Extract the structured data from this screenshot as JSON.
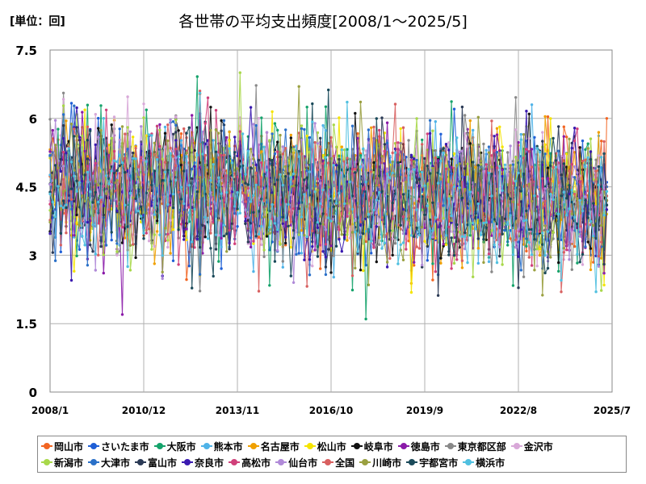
{
  "chart_data": {
    "type": "line",
    "title": "各世帯の平均支出頻度[2008/1～2025/5]",
    "unit_label": "[単位：回]",
    "ylim": [
      0,
      7.5
    ],
    "yticks": [
      "0",
      "1.5",
      "3",
      "4.5",
      "6",
      "7.5"
    ],
    "xlim": [
      "2008/1",
      "2025/7"
    ],
    "xticks": [
      "2008/1",
      "2010/12",
      "2013/11",
      "2016/10",
      "2019/9",
      "2022/8",
      "2025/7"
    ],
    "grid": true,
    "legend_position": "bottom",
    "series": [
      {
        "name": "岡山市",
        "color": "#f26522",
        "last": 6.0
      },
      {
        "name": "さいたま市",
        "color": "#1f5fd6",
        "last": 4.6
      },
      {
        "name": "大阪市",
        "color": "#15a36b",
        "last": 4.3
      },
      {
        "name": "熊本市",
        "color": "#4fb3e8",
        "last": 4.4
      },
      {
        "name": "名古屋市",
        "color": "#f0a000",
        "last": 4.2
      },
      {
        "name": "松山市",
        "color": "#f5e400",
        "last": 3.9
      },
      {
        "name": "岐阜市",
        "color": "#111111",
        "last": 4.1
      },
      {
        "name": "徳島市",
        "color": "#8a1aa8",
        "last": 4.0
      },
      {
        "name": "東京都区部",
        "color": "#888888",
        "last": 4.3
      },
      {
        "name": "金沢市",
        "color": "#d8a8d8",
        "last": 4.1
      },
      {
        "name": "新潟市",
        "color": "#a8d84a",
        "last": 4.0
      },
      {
        "name": "大津市",
        "color": "#2a70c8",
        "last": 4.5
      },
      {
        "name": "富山市",
        "color": "#2b3a55",
        "last": 4.2
      },
      {
        "name": "奈良市",
        "color": "#3a1ab0",
        "last": 4.0
      },
      {
        "name": "高松市",
        "color": "#d0407a",
        "last": 4.2
      },
      {
        "name": "仙台市",
        "color": "#b08ad8",
        "last": 4.1
      },
      {
        "name": "全国",
        "color": "#d86060",
        "last": 4.3
      },
      {
        "name": "川崎市",
        "color": "#9aa040",
        "last": 4.2
      },
      {
        "name": "宇都宮市",
        "color": "#1a4a5a",
        "last": 4.1
      },
      {
        "name": "横浜市",
        "color": "#50c0e0",
        "last": 4.4
      }
    ]
  }
}
